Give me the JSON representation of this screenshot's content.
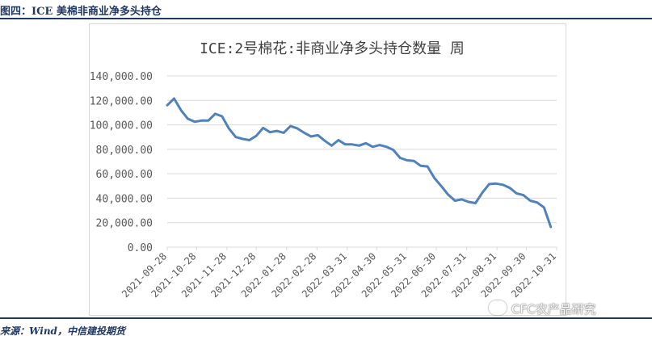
{
  "header": {
    "figure_title": "图四：ICE 美棉非商业净多头持仓"
  },
  "footer": {
    "source": "来源：Wind，中信建投期货"
  },
  "watermark": {
    "text": "CFC农产品研究",
    "icon": "wechat-icon"
  },
  "colors": {
    "line": "#4f81bd",
    "accent": "#1f3864",
    "grid": "#d9d9d9",
    "text": "#595959"
  },
  "chart_data": {
    "type": "line",
    "title": "ICE:2号棉花:非商业净多头持仓数量 周",
    "xlabel": "",
    "ylabel": "",
    "ylim": [
      0,
      140000
    ],
    "yticks": [
      "0.00",
      "20,000.00",
      "40,000.00",
      "60,000.00",
      "80,000.00",
      "100,000.00",
      "120,000.00",
      "140,000.00"
    ],
    "grid": true,
    "legend": "none",
    "x_tick_labels": [
      "2021-09-28",
      "2021-10-28",
      "2021-11-28",
      "2021-12-28",
      "2022-01-28",
      "2022-02-28",
      "2022-03-31",
      "2022-04-30",
      "2022-05-31",
      "2022-06-30",
      "2022-07-31",
      "2022-08-31",
      "2022-09-30",
      "2022-10-31"
    ],
    "series": [
      {
        "x": [
          "2021-09-28",
          "2021-10-05",
          "2021-10-12",
          "2021-10-19",
          "2021-10-26",
          "2021-11-02",
          "2021-11-09",
          "2021-11-16",
          "2021-11-23",
          "2021-11-30",
          "2021-12-07",
          "2021-12-14",
          "2021-12-21",
          "2021-12-28",
          "2022-01-04",
          "2022-01-11",
          "2022-01-18",
          "2022-01-25",
          "2022-02-01",
          "2022-02-08",
          "2022-02-15",
          "2022-02-22",
          "2022-03-01",
          "2022-03-08",
          "2022-03-15",
          "2022-03-22",
          "2022-03-29",
          "2022-04-05",
          "2022-04-12",
          "2022-04-19",
          "2022-04-26",
          "2022-05-03",
          "2022-05-10",
          "2022-05-17",
          "2022-05-24",
          "2022-05-31",
          "2022-06-07",
          "2022-06-14",
          "2022-06-21",
          "2022-06-28",
          "2022-07-05",
          "2022-07-12",
          "2022-07-19",
          "2022-07-26",
          "2022-08-02",
          "2022-08-09",
          "2022-08-16",
          "2022-08-23",
          "2022-08-30",
          "2022-09-06",
          "2022-09-13",
          "2022-09-20",
          "2022-09-27",
          "2022-10-04",
          "2022-10-11",
          "2022-10-18",
          "2022-10-25"
        ],
        "values": [
          116000,
          121500,
          112000,
          105000,
          102500,
          103500,
          103500,
          109000,
          107000,
          97000,
          90000,
          88500,
          87500,
          91000,
          97500,
          94000,
          95000,
          93500,
          99000,
          97000,
          93500,
          90500,
          91500,
          87000,
          83000,
          87500,
          84000,
          84000,
          83000,
          85000,
          82000,
          83500,
          82000,
          79500,
          73000,
          71000,
          70500,
          66500,
          66000,
          56500,
          50000,
          43000,
          38000,
          39000,
          37000,
          36000,
          44500,
          51500,
          52000,
          51000,
          48500,
          44000,
          42500,
          38000,
          36500,
          32500,
          16500
        ]
      }
    ]
  }
}
